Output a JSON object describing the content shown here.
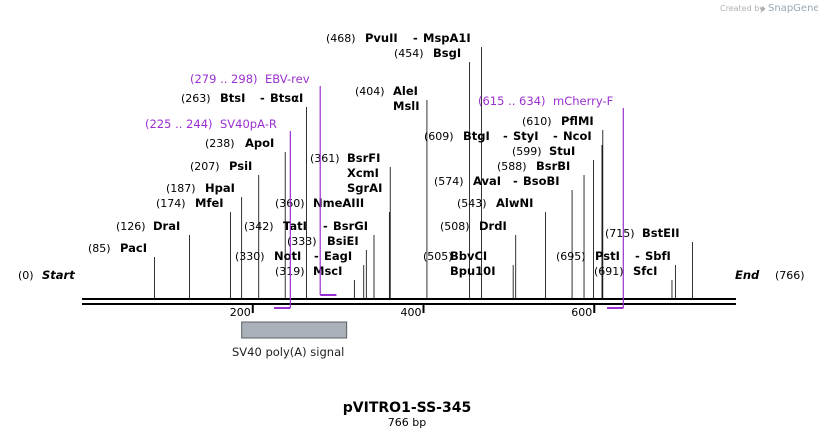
{
  "watermark": {
    "created_by": "Created by",
    "app": "SnapGene"
  },
  "plasmid": {
    "name": "pVITRO1-SS-345",
    "length_label": "766 bp",
    "length_bp": 766
  },
  "ends": {
    "start": {
      "label": "Start",
      "pos_label": "(0)"
    },
    "end": {
      "label": "End",
      "pos_label": "(766)"
    }
  },
  "ticks": [
    {
      "bp": 200,
      "label": "200"
    },
    {
      "bp": 400,
      "label": "400"
    },
    {
      "bp": 600,
      "label": "600"
    }
  ],
  "feature": {
    "name": "SV40 poly(A) signal",
    "start_bp": 187,
    "end_bp": 310,
    "color": "#a9b0b8"
  },
  "colors": {
    "primer": "#9b30d0",
    "line": "#000000"
  },
  "primers": [
    {
      "range": "(279 .. 298)",
      "name": "EBV-rev",
      "site_bp": 279,
      "end_bp": 298,
      "dir": "fwd"
    },
    {
      "range": "(225 .. 244)",
      "name": "SV40pA-R",
      "site_bp": 244,
      "end_bp": 225,
      "dir": "rev"
    },
    {
      "range": "(615 .. 634)",
      "name": "mCherry-F",
      "site_bp": 634,
      "end_bp": 615,
      "dir": "rev"
    }
  ],
  "enzymes": [
    {
      "pos": "(85)",
      "names": [
        "PacI"
      ],
      "bp": 85
    },
    {
      "pos": "(126)",
      "names": [
        "DraI"
      ],
      "bp": 126
    },
    {
      "pos": "(174)",
      "names": [
        "MfeI"
      ],
      "bp": 174
    },
    {
      "pos": "(187)",
      "names": [
        "HpaI"
      ],
      "bp": 187
    },
    {
      "pos": "(207)",
      "names": [
        "PsiI"
      ],
      "bp": 207
    },
    {
      "pos": "(238)",
      "names": [
        "ApoI"
      ],
      "bp": 238
    },
    {
      "pos": "(263)",
      "names": [
        "BtsI",
        "BtsαI"
      ],
      "bp": 263
    },
    {
      "pos": "(319)",
      "names": [
        "MscI"
      ],
      "bp": 319
    },
    {
      "pos": "(330)",
      "names": [
        "NotI",
        "EagI"
      ],
      "bp": 330
    },
    {
      "pos": "(333)",
      "names": [
        "BsiEI"
      ],
      "bp": 333
    },
    {
      "pos": "(342)",
      "names": [
        "TatI",
        "BsrGI"
      ],
      "bp": 342
    },
    {
      "pos": "(360)",
      "names": [
        "NmeAIII"
      ],
      "bp": 360
    },
    {
      "pos": "(361)",
      "names": [
        "BsrFI",
        "XcmI",
        "SgrAI"
      ],
      "bp": 361
    },
    {
      "pos": "(404)",
      "names": [
        "AleI",
        "MslI"
      ],
      "bp": 404
    },
    {
      "pos": "(454)",
      "names": [
        "BsgI"
      ],
      "bp": 454
    },
    {
      "pos": "(468)",
      "names": [
        "PvuII",
        "MspA1I"
      ],
      "bp": 468
    },
    {
      "pos": "(505)",
      "names": [
        "BbvCI",
        "Bpu10I"
      ],
      "bp": 505
    },
    {
      "pos": "(508)",
      "names": [
        "DrdI"
      ],
      "bp": 508
    },
    {
      "pos": "(543)",
      "names": [
        "AlwNI"
      ],
      "bp": 543
    },
    {
      "pos": "(574)",
      "names": [
        "AvaI",
        "BsoBI"
      ],
      "bp": 574
    },
    {
      "pos": "(588)",
      "names": [
        "BsrBI"
      ],
      "bp": 588
    },
    {
      "pos": "(599)",
      "names": [
        "StuI"
      ],
      "bp": 599
    },
    {
      "pos": "(609)",
      "names": [
        "BtgI",
        "StyI",
        "NcoI"
      ],
      "bp": 609
    },
    {
      "pos": "(610)",
      "names": [
        "PflMI"
      ],
      "bp": 610
    },
    {
      "pos": "(691)",
      "names": [
        "SfcI"
      ],
      "bp": 691
    },
    {
      "pos": "(695)",
      "names": [
        "PstI",
        "SbfI"
      ],
      "bp": 695
    },
    {
      "pos": "(715)",
      "names": [
        "BstEII"
      ],
      "bp": 715
    }
  ]
}
